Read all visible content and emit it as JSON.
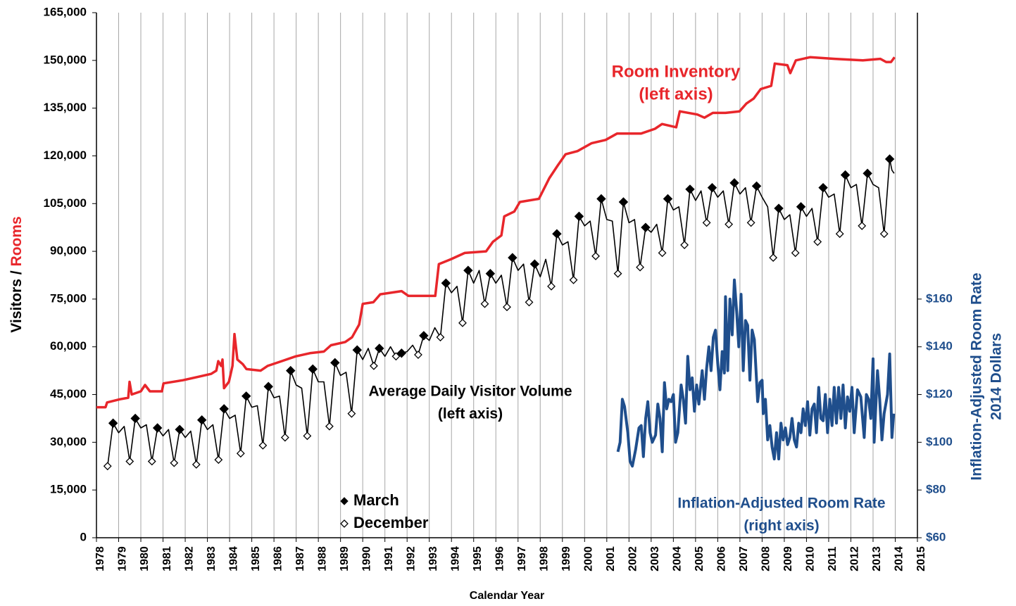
{
  "chart_data": {
    "type": "line",
    "xlabel": "Calendar Year",
    "ylabel": [
      "Visitors /",
      "Rooms"
    ],
    "ylabel_colors": [
      "#000000",
      "#e8262b"
    ],
    "y2label": [
      "Inflation-Adjusted Room Rate",
      "2014 Dollars"
    ],
    "y2label_color": "#1f4e8c",
    "xlim": [
      1978,
      2015
    ],
    "xticks": [
      1978,
      1979,
      1980,
      1981,
      1982,
      1983,
      1984,
      1985,
      1986,
      1987,
      1988,
      1989,
      1990,
      1991,
      1992,
      1993,
      1994,
      1995,
      1996,
      1997,
      1998,
      1999,
      2000,
      2001,
      2002,
      2003,
      2004,
      2005,
      2006,
      2007,
      2008,
      2009,
      2010,
      2011,
      2012,
      2013,
      2014,
      2015
    ],
    "ylim": [
      0,
      165000
    ],
    "yticks": [
      0,
      {
        "value": 15000,
        "label": "15,000"
      },
      {
        "value": 30000,
        "label": "30,000"
      },
      {
        "value": 45000,
        "label": "45,000"
      },
      {
        "value": 60000,
        "label": "60,000"
      },
      {
        "value": 75000,
        "label": "75,000"
      },
      {
        "value": 90000,
        "label": "90,000"
      },
      {
        "value": 105000,
        "label": "105,000"
      },
      {
        "value": 120000,
        "label": "120,000"
      },
      {
        "value": 135000,
        "label": "135,000"
      },
      {
        "value": 150000,
        "label": "150,000"
      },
      {
        "value": 165000,
        "label": "165,000"
      }
    ],
    "y2lim": [
      60,
      280
    ],
    "y2ticks": [
      {
        "value": 60,
        "label": "$60"
      },
      {
        "value": 80,
        "label": "$80"
      },
      {
        "value": 100,
        "label": "$100"
      },
      {
        "value": 120,
        "label": "$120"
      },
      {
        "value": 140,
        "label": "$140"
      },
      {
        "value": 160,
        "label": "$160"
      }
    ],
    "grid": "x",
    "lines": [
      {
        "annotation": [
          "Room Inventory",
          "(left axis)"
        ],
        "color": "#e8262b",
        "width": 3.5,
        "x": [
          1978.0,
          1978.41,
          1978.48,
          1979.05,
          1979.43,
          1979.49,
          1979.59,
          1980.0,
          1980.19,
          1980.41,
          1980.95,
          1981.02,
          1981.9,
          1982.54,
          1983.17,
          1983.4,
          1983.49,
          1983.62,
          1983.68,
          1983.75,
          1983.97,
          1984.13,
          1984.22,
          1984.35,
          1984.6,
          1984.76,
          1985.4,
          1985.71,
          1986.35,
          1986.98,
          1987.62,
          1988.25,
          1988.57,
          1989.21,
          1989.52,
          1989.84,
          1990.0,
          1990.48,
          1990.79,
          1991.75,
          1992.06,
          1993.27,
          1993.43,
          1993.97,
          1994.6,
          1995.56,
          1995.87,
          1996.25,
          1996.38,
          1996.83,
          1997.08,
          1997.94,
          1998.41,
          1998.79,
          1999.14,
          1999.68,
          2000.32,
          2000.95,
          2001.46,
          2002.54,
          2003.17,
          2003.49,
          2004.13,
          2004.29,
          2005.08,
          2005.4,
          2005.78,
          2006.35,
          2006.98,
          2007.3,
          2007.62,
          2007.94,
          2008.41,
          2008.57,
          2009.14,
          2009.27,
          2009.52,
          2010.16,
          2011.27,
          2012.54,
          2013.33,
          2013.59,
          2013.81,
          2013.97
        ],
        "values": [
          41000,
          41000,
          42500,
          43500,
          44000,
          49000,
          45000,
          46000,
          48000,
          46000,
          46000,
          48500,
          49500,
          50500,
          51500,
          52500,
          55500,
          54000,
          56000,
          47000,
          49000,
          54000,
          64000,
          56000,
          54500,
          53000,
          52500,
          54000,
          55500,
          57000,
          58000,
          58500,
          60500,
          61500,
          63000,
          67000,
          73500,
          74000,
          76500,
          77500,
          76000,
          76000,
          86000,
          87500,
          89500,
          90000,
          93000,
          95000,
          101000,
          102500,
          105500,
          106500,
          113000,
          117000,
          120500,
          121500,
          124000,
          125000,
          127000,
          127000,
          128500,
          130000,
          129000,
          134000,
          133000,
          132000,
          133500,
          133500,
          134000,
          136500,
          138000,
          141000,
          142000,
          149000,
          148500,
          146000,
          150000,
          151000,
          150500,
          150000,
          150500,
          149500,
          149500,
          151000
        ]
      },
      {
        "annotation": [
          "Average Daily Visitor Volume",
          "(left axis)"
        ],
        "color": "#000000",
        "width": 1.6,
        "x": [
          1978.5,
          1978.75,
          1979,
          1979.25,
          1979.5,
          1979.75,
          1980,
          1980.25,
          1980.5,
          1980.75,
          1981,
          1981.25,
          1981.5,
          1981.75,
          1982,
          1982.25,
          1982.5,
          1982.75,
          1983,
          1983.25,
          1983.5,
          1983.75,
          1984,
          1984.25,
          1984.5,
          1984.75,
          1985,
          1985.25,
          1985.5,
          1985.75,
          1986,
          1986.25,
          1986.5,
          1986.75,
          1987,
          1987.25,
          1987.5,
          1987.75,
          1988,
          1988.25,
          1988.5,
          1988.75,
          1989,
          1989.25,
          1989.5,
          1989.75,
          1990,
          1990.25,
          1990.5,
          1990.75,
          1991,
          1991.25,
          1991.5,
          1991.75,
          1992,
          1992.25,
          1992.5,
          1992.75,
          1993,
          1993.25,
          1993.5,
          1993.75,
          1994,
          1994.25,
          1994.5,
          1994.75,
          1995,
          1995.25,
          1995.5,
          1995.75,
          1996,
          1996.25,
          1996.5,
          1996.75,
          1997,
          1997.25,
          1997.5,
          1997.75,
          1998,
          1998.25,
          1998.5,
          1998.75,
          1999,
          1999.25,
          1999.5,
          1999.75,
          2000,
          2000.25,
          2000.5,
          2000.75,
          2001,
          2001.25,
          2001.5,
          2001.75,
          2002,
          2002.25,
          2002.5,
          2002.75,
          2003,
          2003.25,
          2003.5,
          2003.75,
          2004,
          2004.25,
          2004.5,
          2004.75,
          2005,
          2005.25,
          2005.5,
          2005.75,
          2006,
          2006.25,
          2006.5,
          2006.75,
          2007,
          2007.25,
          2007.5,
          2007.75,
          2008,
          2008.25,
          2008.5,
          2008.75,
          2009,
          2009.25,
          2009.5,
          2009.75,
          2010,
          2010.25,
          2010.5,
          2010.75,
          2011,
          2011.25,
          2011.5,
          2011.75,
          2012,
          2012.25,
          2012.5,
          2012.75,
          2013,
          2013.25,
          2013.5,
          2013.75,
          2013.85,
          2013.95
        ],
        "values": [
          22500,
          36000,
          33000,
          35000,
          24000,
          37500,
          34500,
          35500,
          24000,
          34500,
          32000,
          34000,
          23500,
          34000,
          31500,
          33500,
          23000,
          37000,
          34000,
          35500,
          24500,
          40500,
          37500,
          38500,
          26500,
          44500,
          41000,
          41500,
          29000,
          47500,
          44000,
          44500,
          31500,
          52500,
          48000,
          47000,
          32000,
          53000,
          49000,
          49000,
          35000,
          55000,
          51000,
          52000,
          39000,
          59000,
          56000,
          59500,
          54000,
          59500,
          57000,
          60000,
          57000,
          58000,
          58500,
          60500,
          57500,
          63500,
          62000,
          66000,
          63000,
          80000,
          77000,
          79000,
          67500,
          84000,
          80000,
          84000,
          73500,
          83000,
          80000,
          82500,
          72500,
          88000,
          84000,
          86000,
          74000,
          86000,
          82000,
          87500,
          79000,
          95500,
          92000,
          93000,
          81000,
          101000,
          98000,
          99500,
          88500,
          106500,
          100000,
          99500,
          83000,
          105500,
          99000,
          100000,
          85000,
          97500,
          96000,
          98500,
          89500,
          106500,
          103000,
          104000,
          92000,
          109500,
          106000,
          109000,
          99000,
          110000,
          107000,
          109000,
          98500,
          111500,
          108000,
          110000,
          99000,
          110500,
          107000,
          104000,
          88000,
          103500,
          100000,
          101500,
          89500,
          104000,
          101000,
          103500,
          93000,
          110000,
          107000,
          108000,
          95500,
          114000,
          110000,
          111000,
          98000,
          114500,
          111000,
          110000,
          95500,
          119000,
          115500,
          114500
        ]
      },
      {
        "annotation": [
          "Inflation-Adjusted Room Rate",
          "(right axis)"
        ],
        "color": "#1f4e8c",
        "width": 4,
        "axis": "y2",
        "x": [
          2001.5,
          2001.6,
          2001.7,
          2001.8,
          2001.95,
          2002.05,
          2002.15,
          2002.3,
          2002.45,
          2002.55,
          2002.65,
          2002.75,
          2002.85,
          2002.95,
          2003.05,
          2003.2,
          2003.3,
          2003.4,
          2003.5,
          2003.6,
          2003.7,
          2003.8,
          2003.9,
          2004.0,
          2004.1,
          2004.2,
          2004.35,
          2004.45,
          2004.55,
          2004.65,
          2004.75,
          2004.85,
          2004.95,
          2005.05,
          2005.15,
          2005.3,
          2005.4,
          2005.5,
          2005.6,
          2005.7,
          2005.8,
          2005.9,
          2006.0,
          2006.1,
          2006.2,
          2006.3,
          2006.35,
          2006.45,
          2006.55,
          2006.65,
          2006.75,
          2006.85,
          2006.95,
          2007.05,
          2007.15,
          2007.25,
          2007.35,
          2007.45,
          2007.55,
          2007.65,
          2007.75,
          2007.8,
          2007.9,
          2008.0,
          2008.05,
          2008.15,
          2008.25,
          2008.35,
          2008.45,
          2008.55,
          2008.65,
          2008.75,
          2008.85,
          2008.95,
          2009.05,
          2009.15,
          2009.25,
          2009.35,
          2009.45,
          2009.55,
          2009.65,
          2009.75,
          2009.85,
          2009.95,
          2010.05,
          2010.15,
          2010.25,
          2010.35,
          2010.45,
          2010.55,
          2010.65,
          2010.75,
          2010.85,
          2010.95,
          2011.05,
          2011.15,
          2011.25,
          2011.35,
          2011.45,
          2011.55,
          2011.65,
          2011.75,
          2011.85,
          2011.95,
          2012.05,
          2012.15,
          2012.3,
          2012.45,
          2012.6,
          2012.7,
          2012.8,
          2012.9,
          2013.0,
          2013.05,
          2013.2,
          2013.3,
          2013.4,
          2013.5,
          2013.65,
          2013.75,
          2013.85,
          2013.93
        ],
        "values": [
          96,
          100,
          118,
          115,
          104,
          92,
          90,
          97,
          106,
          107,
          94,
          110,
          117,
          104,
          100,
          103,
          116,
          110,
          96,
          125,
          114,
          118,
          117,
          120,
          100,
          104,
          124,
          118,
          108,
          136,
          122,
          127,
          113,
          124,
          116,
          130,
          118,
          131,
          140,
          130,
          144,
          147,
          133,
          122,
          138,
          129,
          161,
          130,
          160,
          145,
          168,
          155,
          140,
          162,
          130,
          151,
          149,
          126,
          147,
          143,
          126,
          117,
          125,
          126,
          112,
          118,
          101,
          107,
          98,
          93,
          104,
          93,
          108,
          101,
          106,
          99,
          102,
          110,
          101,
          98,
          108,
          104,
          114,
          107,
          117,
          103,
          114,
          116,
          104,
          123,
          110,
          109,
          120,
          104,
          118,
          107,
          123,
          108,
          123,
          110,
          124,
          106,
          119,
          113,
          123,
          104,
          122,
          119,
          102,
          120,
          118,
          110,
          135,
          100,
          130,
          118,
          101,
          112,
          120,
          137,
          102,
          112
        ]
      }
    ],
    "series": [
      {
        "name": "March",
        "marker": "filled",
        "color": "#000000",
        "x": [
          1978.75,
          1979.75,
          1980.75,
          1981.75,
          1982.75,
          1983.75,
          1984.75,
          1985.75,
          1986.75,
          1987.75,
          1988.75,
          1989.75,
          1990.75,
          1991.75,
          1992.75,
          1993.75,
          1994.75,
          1995.75,
          1996.75,
          1997.75,
          1998.75,
          1999.75,
          2000.75,
          2001.75,
          2002.75,
          2003.75,
          2004.75,
          2005.75,
          2006.75,
          2007.75,
          2008.75,
          2009.75,
          2010.75,
          2011.75,
          2012.75,
          2013.75
        ],
        "values": [
          36000,
          37500,
          34500,
          34000,
          37000,
          40500,
          44500,
          47500,
          52500,
          53000,
          55000,
          59000,
          59500,
          58000,
          63500,
          80000,
          84000,
          83000,
          88000,
          86000,
          95500,
          101000,
          106500,
          105500,
          97500,
          106500,
          109500,
          110000,
          111500,
          110500,
          103500,
          104000,
          110000,
          114000,
          114500,
          119000
        ]
      },
      {
        "name": "December",
        "marker": "hollow",
        "color": "#000000",
        "x": [
          1978.5,
          1979.5,
          1980.5,
          1981.5,
          1982.5,
          1983.5,
          1984.5,
          1985.5,
          1986.5,
          1987.5,
          1988.5,
          1989.5,
          1990.5,
          1991.5,
          1992.5,
          1993.5,
          1994.5,
          1995.5,
          1996.5,
          1997.5,
          1998.5,
          1999.5,
          2000.5,
          2001.5,
          2002.5,
          2003.5,
          2004.5,
          2005.5,
          2006.5,
          2007.5,
          2008.5,
          2009.5,
          2010.5,
          2011.5,
          2012.5,
          2013.5
        ],
        "values": [
          22500,
          24000,
          24000,
          23500,
          23000,
          24500,
          26500,
          29000,
          31500,
          32000,
          35000,
          39000,
          54000,
          57000,
          57500,
          63000,
          67500,
          73500,
          72500,
          74000,
          79000,
          81000,
          88500,
          83000,
          85000,
          89500,
          92000,
          99000,
          98500,
          99000,
          88000,
          89500,
          93000,
          95500,
          98000,
          95500
        ]
      }
    ]
  }
}
